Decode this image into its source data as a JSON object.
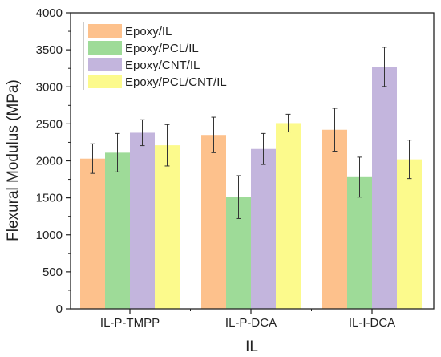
{
  "chart_data": {
    "type": "bar",
    "xlabel": "IL",
    "ylabel": "Flexural Modulus (MPa)",
    "ylim": [
      0,
      4000
    ],
    "yticks": [
      0,
      500,
      1000,
      1500,
      2000,
      2500,
      3000,
      3500,
      4000
    ],
    "categories": [
      "IL-P-TMPP",
      "IL-P-DCA",
      "IL-I-DCA"
    ],
    "legend_position": "top-left",
    "series": [
      {
        "name": "Epoxy/IL",
        "color": "#FDC18C",
        "values": [
          2030,
          2350,
          2420
        ],
        "errors": [
          200,
          240,
          290
        ]
      },
      {
        "name": "Epoxy/PCL/IL",
        "color": "#9EDB98",
        "values": [
          2110,
          1510,
          1780
        ],
        "errors": [
          260,
          290,
          270
        ]
      },
      {
        "name": "Epoxy/CNT/IL",
        "color": "#C3B5DD",
        "values": [
          2380,
          2160,
          3270
        ],
        "errors": [
          175,
          210,
          265
        ]
      },
      {
        "name": "Epoxy/PCL/CNT/IL",
        "color": "#FCFA8C",
        "values": [
          2210,
          2510,
          2020
        ],
        "errors": [
          280,
          120,
          260
        ]
      }
    ]
  }
}
